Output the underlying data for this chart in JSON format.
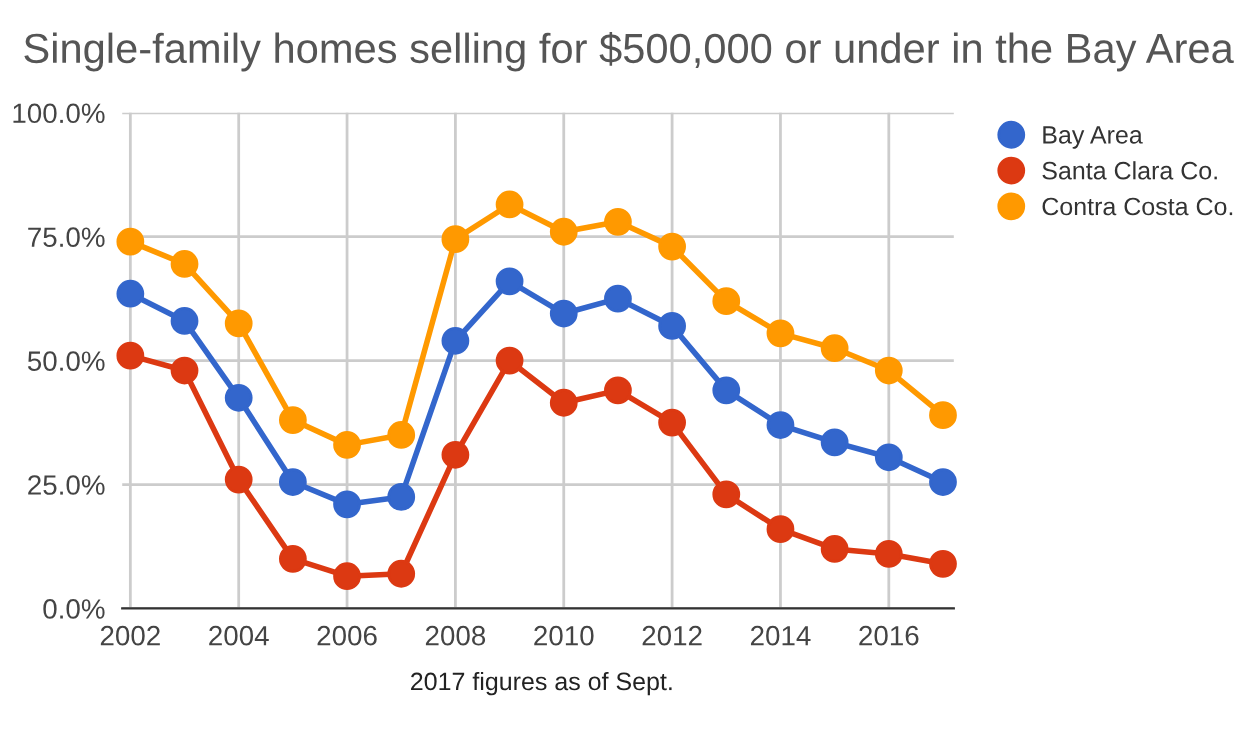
{
  "chart_data": {
    "type": "line",
    "title": "Single-family homes selling for $500,000 or under in the Bay Area",
    "x": [
      2002,
      2003,
      2004,
      2005,
      2006,
      2007,
      2008,
      2009,
      2010,
      2011,
      2012,
      2013,
      2014,
      2015,
      2016,
      2017
    ],
    "series": [
      {
        "name": "Bay Area",
        "color": "#3366cc",
        "values": [
          63.5,
          58,
          42.5,
          25.5,
          21,
          22.5,
          54,
          66,
          59.5,
          62.5,
          57,
          44,
          37,
          33.5,
          30.5,
          25.5
        ]
      },
      {
        "name": "Santa Clara Co.",
        "color": "#dc3912",
        "values": [
          51,
          48,
          26,
          10,
          6.5,
          7,
          31,
          50,
          41.5,
          44,
          37.5,
          23,
          16,
          12,
          11,
          9
        ]
      },
      {
        "name": "Contra Costa Co.",
        "color": "#ff9900",
        "values": [
          74,
          69.5,
          57.5,
          38,
          33,
          35,
          74.5,
          81.5,
          76,
          78,
          73,
          62,
          55.5,
          52.5,
          48,
          39
        ]
      }
    ],
    "xlim": [
      2001.85,
      2017.2
    ],
    "xticks": [
      2002,
      2004,
      2006,
      2008,
      2010,
      2012,
      2014,
      2016
    ],
    "ylim": [
      0,
      100
    ],
    "yticks": [
      {
        "value": 0,
        "label": "0.0%"
      },
      {
        "value": 25,
        "label": "25.0%"
      },
      {
        "value": 50,
        "label": "50.0%"
      },
      {
        "value": 75,
        "label": "75.0%"
      },
      {
        "value": 100,
        "label": "100.0%"
      }
    ],
    "grid": true,
    "legend": "right",
    "marker": "circle",
    "line_style": "solid",
    "annotations": [
      "2017 figures as of Sept."
    ]
  }
}
